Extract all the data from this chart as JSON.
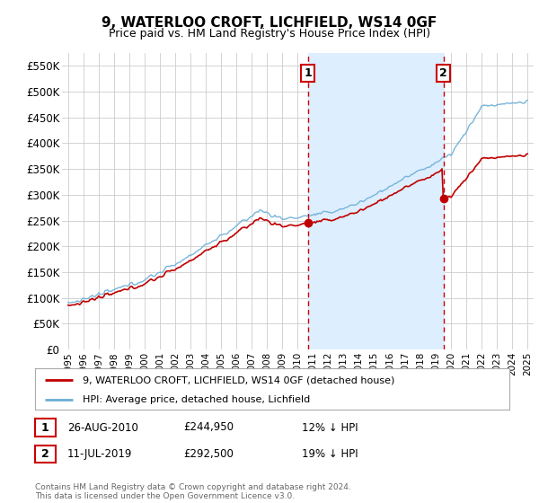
{
  "title": "9, WATERLOO CROFT, LICHFIELD, WS14 0GF",
  "subtitle": "Price paid vs. HM Land Registry's House Price Index (HPI)",
  "legend_entry1": "9, WATERLOO CROFT, LICHFIELD, WS14 0GF (detached house)",
  "legend_entry2": "HPI: Average price, detached house, Lichfield",
  "annotation1_date": "26-AUG-2010",
  "annotation1_price": "£244,950",
  "annotation1_hpi": "12% ↓ HPI",
  "annotation2_date": "11-JUL-2019",
  "annotation2_price": "£292,500",
  "annotation2_hpi": "19% ↓ HPI",
  "footer": "Contains HM Land Registry data © Crown copyright and database right 2024.\nThis data is licensed under the Open Government Licence v3.0.",
  "sale1_year": 2010.65,
  "sale1_value": 244950,
  "sale2_year": 2019.52,
  "sale2_value": 292500,
  "hpi_color": "#6baed6",
  "sale_color": "#c00000",
  "shade_color": "#ddeeff",
  "grid_color": "#cccccc",
  "bg_color": "#ffffff",
  "ylim_min": 0,
  "ylim_max": 575000,
  "xlim_min": 1994.6,
  "xlim_max": 2025.4
}
